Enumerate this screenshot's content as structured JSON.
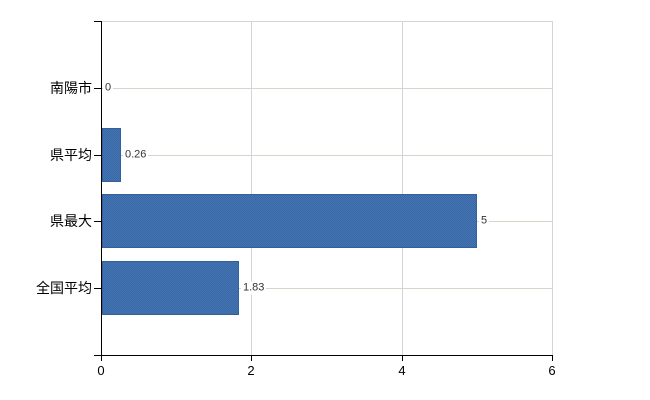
{
  "chart_data": {
    "type": "bar",
    "orientation": "horizontal",
    "title": "",
    "xlabel": "",
    "ylabel": "",
    "categories": [
      "南陽市",
      "県平均",
      "県最大",
      "全国平均"
    ],
    "values": [
      0,
      0.26,
      5,
      1.83
    ],
    "value_labels": [
      "0",
      "0.26",
      "5",
      "1.83"
    ],
    "xlim": [
      0,
      6
    ],
    "xticks": [
      0,
      2,
      4,
      6
    ],
    "xtick_labels": [
      "0",
      "2",
      "4",
      "6"
    ],
    "grid": true,
    "legend": false,
    "colors": {
      "bar_fill": "#4376b5",
      "bar_fill_alt": "#3a66a3",
      "bar_border": "#31609c",
      "axis": "#000000",
      "grid_h": "#d3d8cb",
      "grid_v": "#d6d4da",
      "text": "#000000",
      "value_text": "#333333",
      "background": "#ffffff"
    }
  }
}
